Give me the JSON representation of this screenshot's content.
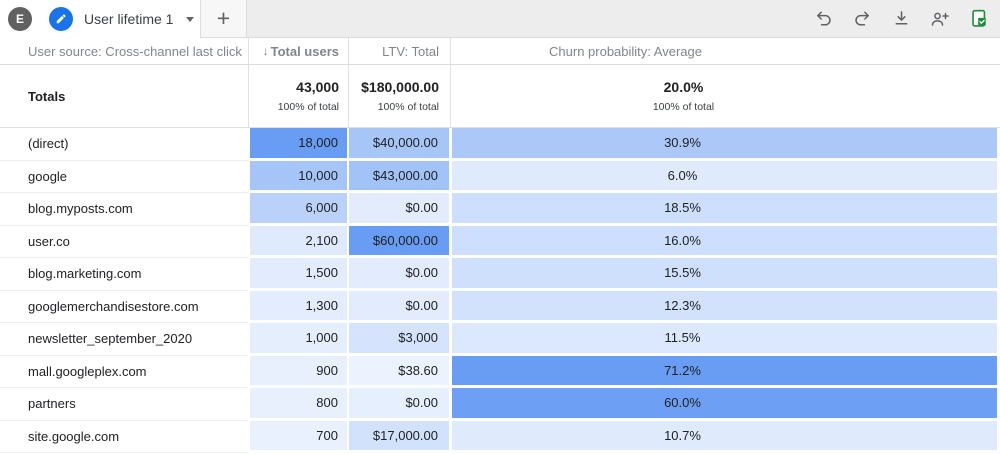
{
  "topbar": {
    "avatar_letter": "E",
    "tab_label": "User lifetime 1",
    "new_tab_glyph": "+",
    "actions": [
      "undo-icon",
      "redo-icon",
      "download-icon",
      "add-user-icon",
      "export-sheets-icon"
    ]
  },
  "colors": {
    "accent_blue": "#1a73e8",
    "sheets_green": "#1e8e3e",
    "heat_max": "#689df3",
    "heat_min": "#e9f1fe"
  },
  "table": {
    "columns": [
      {
        "label": "User source: Cross-channel last click"
      },
      {
        "label": "Total users",
        "sorted": true,
        "sort_glyph": "↓"
      },
      {
        "label": "LTV: Total"
      },
      {
        "label": "Churn probability: Average"
      }
    ],
    "totals": {
      "label": "Totals",
      "users": "43,000",
      "users_sub": "100% of total",
      "ltv": "$180,000.00",
      "ltv_sub": "100% of total",
      "churn": "20.0%",
      "churn_sub": "100% of total"
    },
    "rows": [
      {
        "source": "(direct)",
        "users": "18,000",
        "ltv": "$40,000.00",
        "churn": "30.9%",
        "users_bg": "#689df3",
        "ltv_bg": "#a6c6f8",
        "churn_bg": "#abc8f8"
      },
      {
        "source": "google",
        "users": "10,000",
        "ltv": "$43,000.00",
        "churn": "6.0%",
        "users_bg": "#a5c5f8",
        "ltv_bg": "#a2c3f8",
        "churn_bg": "#dfeafd"
      },
      {
        "source": "blog.myposts.com",
        "users": "6,000",
        "ltv": "$0.00",
        "churn": "18.5%",
        "users_bg": "#bad2fa",
        "ltv_bg": "#e2ecfd",
        "churn_bg": "#cddffc"
      },
      {
        "source": "user.co",
        "users": "2,100",
        "ltv": "$60,000.00",
        "churn": "16.0%",
        "users_bg": "#e0eafd",
        "ltv_bg": "#689df3",
        "churn_bg": "#cddffc"
      },
      {
        "source": "blog.marketing.com",
        "users": "1,500",
        "ltv": "$0.00",
        "churn": "15.5%",
        "users_bg": "#e2ecfd",
        "ltv_bg": "#e2ecfd",
        "churn_bg": "#cfe0fc"
      },
      {
        "source": "googlemerchandisestore.com",
        "users": "1,300",
        "ltv": "$0.00",
        "churn": "12.3%",
        "users_bg": "#e3edfd",
        "ltv_bg": "#e2ecfd",
        "churn_bg": "#d2e2fc"
      },
      {
        "source": "newsletter_september_2020",
        "users": "1,000",
        "ltv": "$3,000",
        "churn": "11.5%",
        "users_bg": "#e4eefd",
        "ltv_bg": "#d5e3fc",
        "churn_bg": "#dce8fd"
      },
      {
        "source": "mall.googleplex.com",
        "users": "900",
        "ltv": "$38.60",
        "churn": "71.2%",
        "users_bg": "#e8f0fe",
        "ltv_bg": "#ecf3fe",
        "churn_bg": "#689df3"
      },
      {
        "source": "partners",
        "users": "800",
        "ltv": "$0.00",
        "churn": "60.0%",
        "users_bg": "#e8f0fe",
        "ltv_bg": "#e6effd",
        "churn_bg": "#6da0f4"
      },
      {
        "source": "site.google.com",
        "users": "700",
        "ltv": "$17,000.00",
        "churn": "10.7%",
        "users_bg": "#e9f1fe",
        "ltv_bg": "#d3e2fc",
        "churn_bg": "#dfeafd"
      }
    ]
  }
}
